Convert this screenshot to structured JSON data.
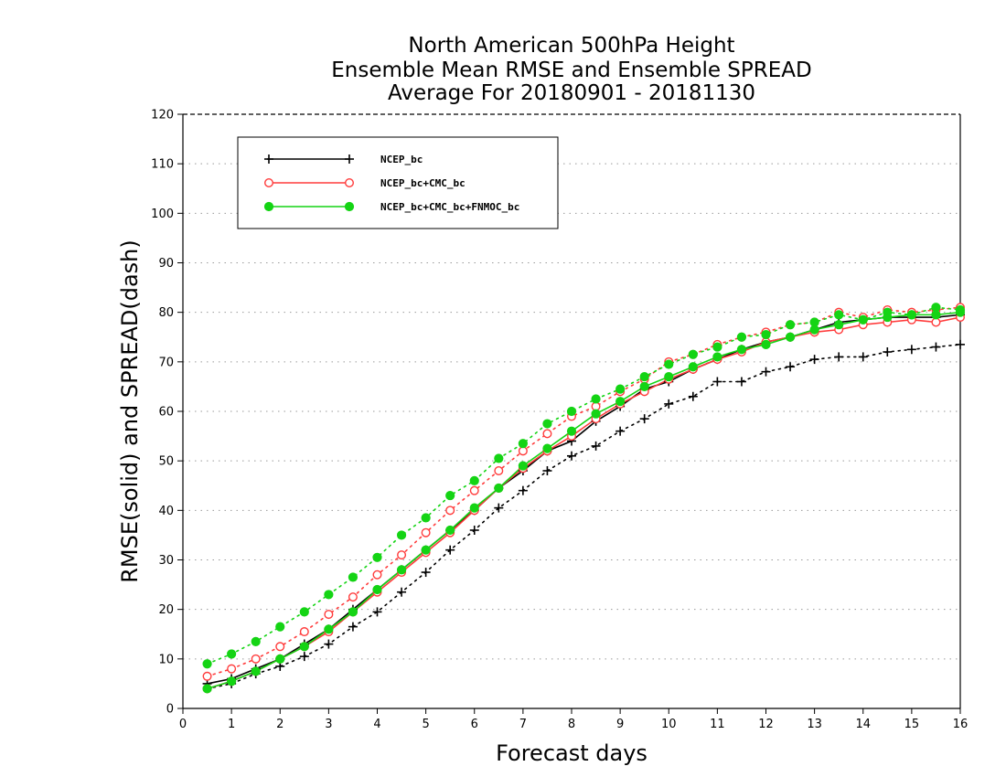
{
  "chart_data": {
    "type": "line",
    "title": [
      "North American 500hPa Height",
      "Ensemble Mean RMSE and Ensemble SPREAD",
      "Average For 20180901 - 20181130"
    ],
    "xlabel": "Forecast days",
    "ylabel": "RMSE(solid) and SPREAD(dash)",
    "xlim": [
      0,
      16
    ],
    "ylim": [
      0,
      120
    ],
    "xticks": [
      0,
      1,
      2,
      3,
      4,
      5,
      6,
      7,
      8,
      9,
      10,
      11,
      12,
      13,
      14,
      15,
      16
    ],
    "yticks": [
      0,
      10,
      20,
      30,
      40,
      50,
      60,
      70,
      80,
      90,
      100,
      110,
      120
    ],
    "grid": "horizontal-dotted",
    "legend_position": "top-left",
    "x": [
      0.5,
      1,
      1.5,
      2,
      2.5,
      3,
      3.5,
      4,
      4.5,
      5,
      5.5,
      6,
      6.5,
      7,
      7.5,
      8,
      8.5,
      9,
      9.5,
      10,
      10.5,
      11,
      11.5,
      12,
      12.5,
      13,
      13.5,
      14,
      14.5,
      15,
      15.5,
      16
    ],
    "series": [
      {
        "name": "NCEP_bc",
        "color": "#000000",
        "marker": "plus",
        "rmse": [
          5,
          6,
          8,
          10,
          13,
          16,
          20,
          24,
          28,
          32,
          36,
          40,
          44.5,
          48,
          52,
          54,
          58,
          61,
          64.5,
          66,
          68.5,
          70.5,
          72.5,
          74,
          75,
          76.5,
          78,
          78.5,
          79,
          79,
          79,
          79.5
        ],
        "spread": [
          4,
          5,
          7,
          8.5,
          10.5,
          13,
          16.5,
          19.5,
          23.5,
          27.5,
          32,
          36,
          40.5,
          44,
          48,
          51,
          53,
          56,
          58.5,
          61.5,
          63,
          66,
          66,
          68,
          69,
          70.5,
          71,
          71,
          72,
          72.5,
          73,
          73.5
        ]
      },
      {
        "name": "NCEP_bc+CMC_bc",
        "color": "#ff3b3b",
        "marker": "open-circle",
        "rmse": [
          4,
          5.5,
          7.5,
          10,
          12.5,
          15.5,
          19.5,
          23.5,
          27.5,
          31.5,
          35.5,
          40,
          44.5,
          48.5,
          52,
          55,
          58.5,
          61.5,
          64,
          66.5,
          68.5,
          70.5,
          72,
          74,
          75,
          76,
          76.5,
          77.5,
          78,
          78.5,
          78,
          79
        ],
        "spread": [
          6.5,
          8,
          10,
          12.5,
          15.5,
          19,
          22.5,
          27,
          31,
          35.5,
          40,
          44,
          48,
          52,
          55.5,
          59,
          61,
          64,
          66.5,
          70,
          71.5,
          73.5,
          75,
          76,
          77.5,
          78,
          80,
          79,
          80.5,
          80,
          80.5,
          81
        ]
      },
      {
        "name": "NCEP_bc+CMC_bc+FNMOC_bc",
        "color": "#14d414",
        "marker": "filled-circle",
        "rmse": [
          4,
          5.5,
          7.5,
          10,
          12.5,
          16,
          19.5,
          24,
          28,
          32,
          36,
          40.5,
          44.5,
          49,
          52.5,
          56,
          59.5,
          62,
          65,
          67,
          69,
          71,
          72.5,
          73.5,
          75,
          76.5,
          77.5,
          78.5,
          79,
          79.5,
          79.5,
          80
        ],
        "spread": [
          9,
          11,
          13.5,
          16.5,
          19.5,
          23,
          26.5,
          30.5,
          35,
          38.5,
          43,
          46,
          50.5,
          53.5,
          57.5,
          60,
          62.5,
          64.5,
          67,
          69.5,
          71.5,
          73,
          75,
          75.5,
          77.5,
          78,
          79.5,
          78.5,
          80,
          79.5,
          81,
          80.5
        ]
      }
    ]
  }
}
